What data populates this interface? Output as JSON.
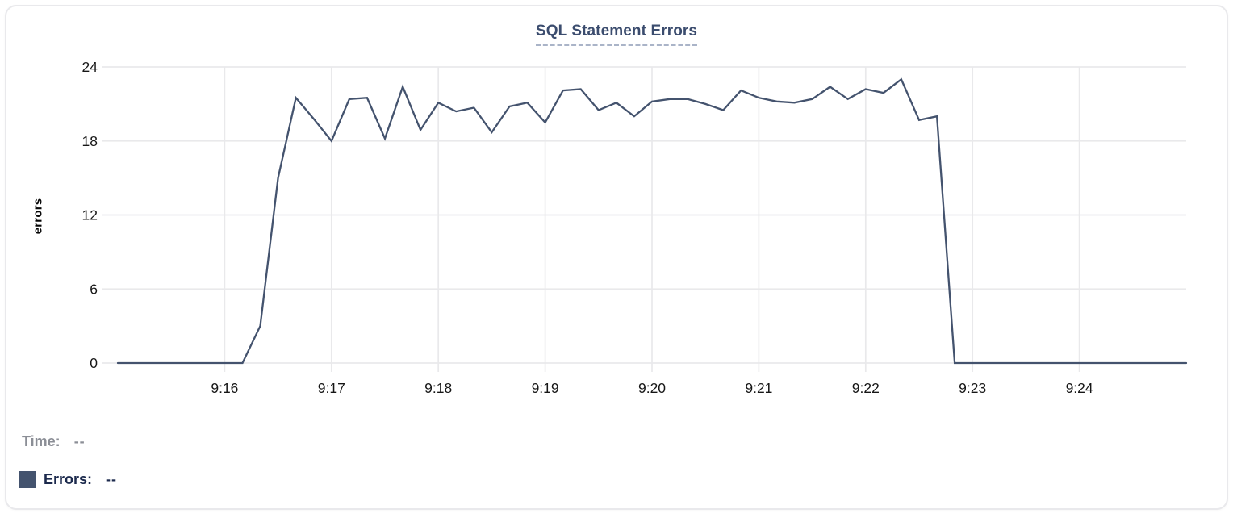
{
  "chart_data": {
    "type": "line",
    "title": "SQL Statement Errors",
    "ylabel": "errors",
    "xlabel": "",
    "grid": true,
    "ylim": [
      0,
      24
    ],
    "y_ticks": [
      0,
      6,
      12,
      18,
      24
    ],
    "x_start_time": "9:15:00",
    "x_end_time": "9:25:00",
    "interval_seconds": 10,
    "x_ticks": [
      {
        "label": "9:16",
        "minute_offset": 1
      },
      {
        "label": "9:17",
        "minute_offset": 2
      },
      {
        "label": "9:18",
        "minute_offset": 3
      },
      {
        "label": "9:19",
        "minute_offset": 4
      },
      {
        "label": "9:20",
        "minute_offset": 5
      },
      {
        "label": "9:21",
        "minute_offset": 6
      },
      {
        "label": "9:22",
        "minute_offset": 7
      },
      {
        "label": "9:23",
        "minute_offset": 8
      },
      {
        "label": "9:24",
        "minute_offset": 9
      }
    ],
    "series": [
      {
        "name": "Errors",
        "color": "#44536e",
        "values": [
          0,
          0,
          0,
          0,
          0,
          0,
          0,
          0,
          3,
          15,
          21.5,
          19.8,
          18,
          21.4,
          21.5,
          18.2,
          22.4,
          18.9,
          21.1,
          20.4,
          20.7,
          18.7,
          20.8,
          21.1,
          19.5,
          22.1,
          22.2,
          20.5,
          21.1,
          20,
          21.2,
          21.4,
          21.4,
          21,
          20.5,
          22.1,
          21.5,
          21.2,
          21.1,
          21.4,
          22.4,
          21.4,
          22.2,
          21.9,
          23,
          19.7,
          20,
          0,
          0,
          0,
          0,
          0,
          0,
          0,
          0,
          0,
          0,
          0,
          0,
          0,
          0
        ]
      }
    ],
    "legend_position": "bottom-left"
  },
  "readout": {
    "time_label": "Time:",
    "time_value": "--",
    "errors_label": "Errors:",
    "errors_value": "--",
    "swatch_color": "#44536e"
  },
  "style_colors": {
    "title_color": "#3b4c6e",
    "title_underline": "#aab4c8",
    "gridline": "#e9e9eb",
    "tick_text": "#161616",
    "time_row_text": "#8b8e96",
    "errors_row_text": "#1c2a4d",
    "card_border": "#e9e9ec"
  }
}
